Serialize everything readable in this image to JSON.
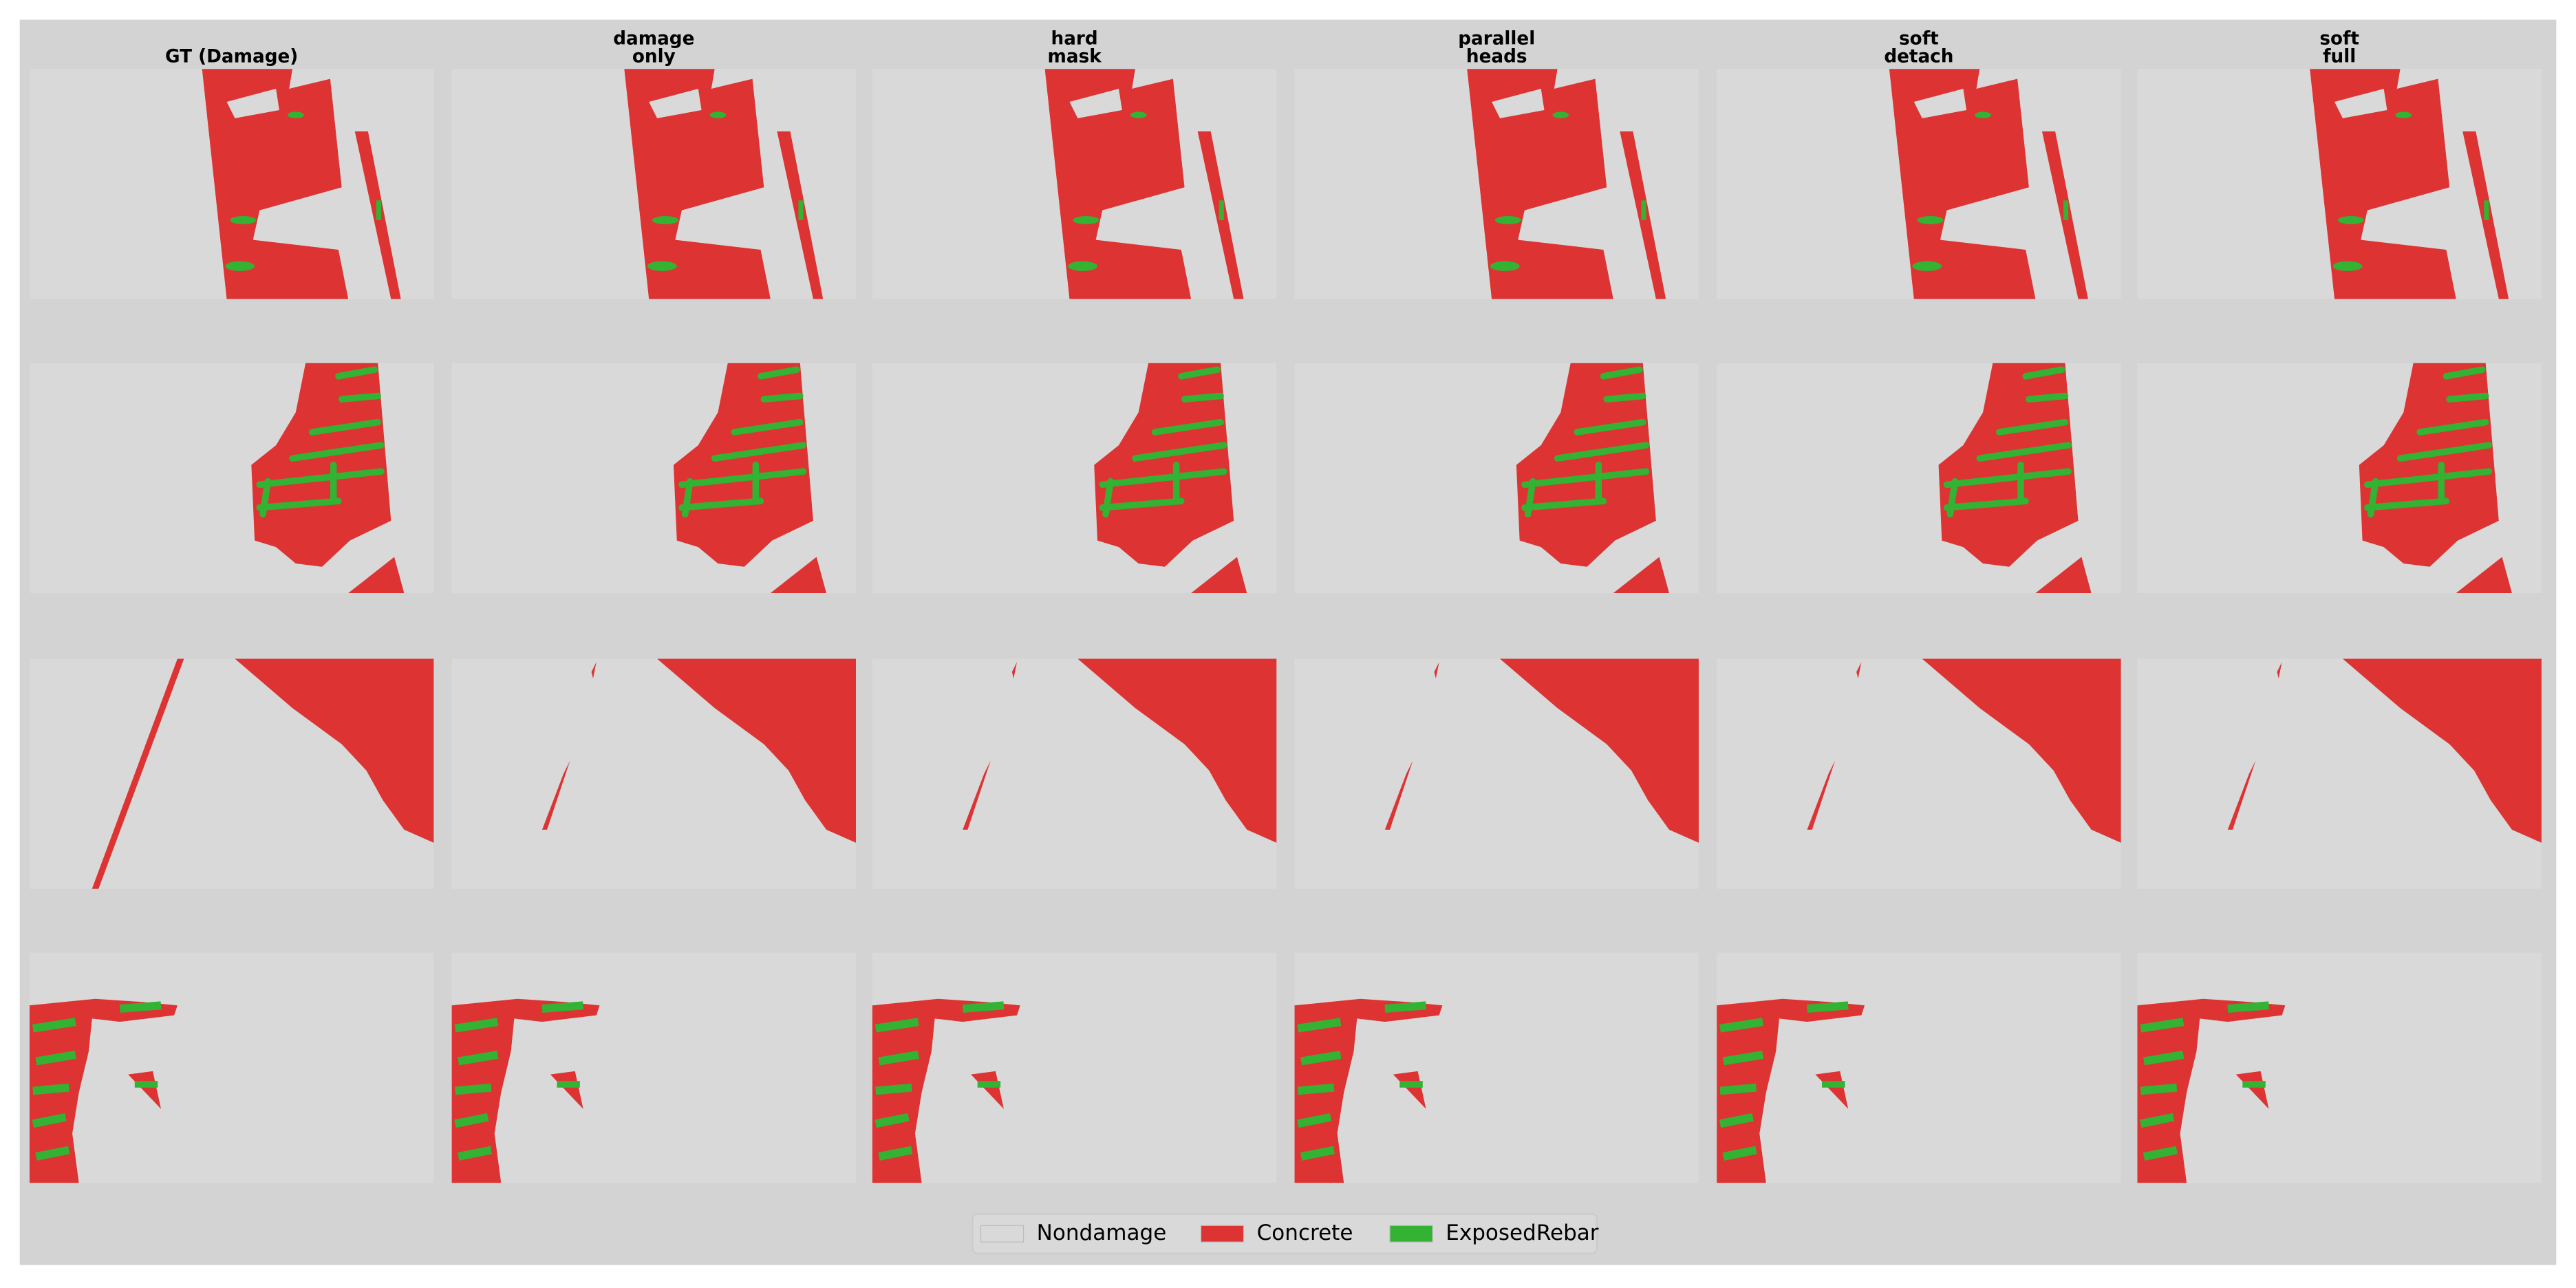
{
  "columns": [
    [
      "GT (Damage)"
    ],
    [
      "damage",
      "only"
    ],
    [
      "hard",
      "mask"
    ],
    [
      "parallel",
      "heads"
    ],
    [
      "soft",
      "detach"
    ],
    [
      "soft",
      "full"
    ]
  ],
  "legend": [
    {
      "label": "Nondamage",
      "color": "#d9d9d9"
    },
    {
      "label": "Concrete",
      "color": "#dd3333"
    },
    {
      "label": "ExposedRebar",
      "color": "#33b233"
    }
  ]
}
